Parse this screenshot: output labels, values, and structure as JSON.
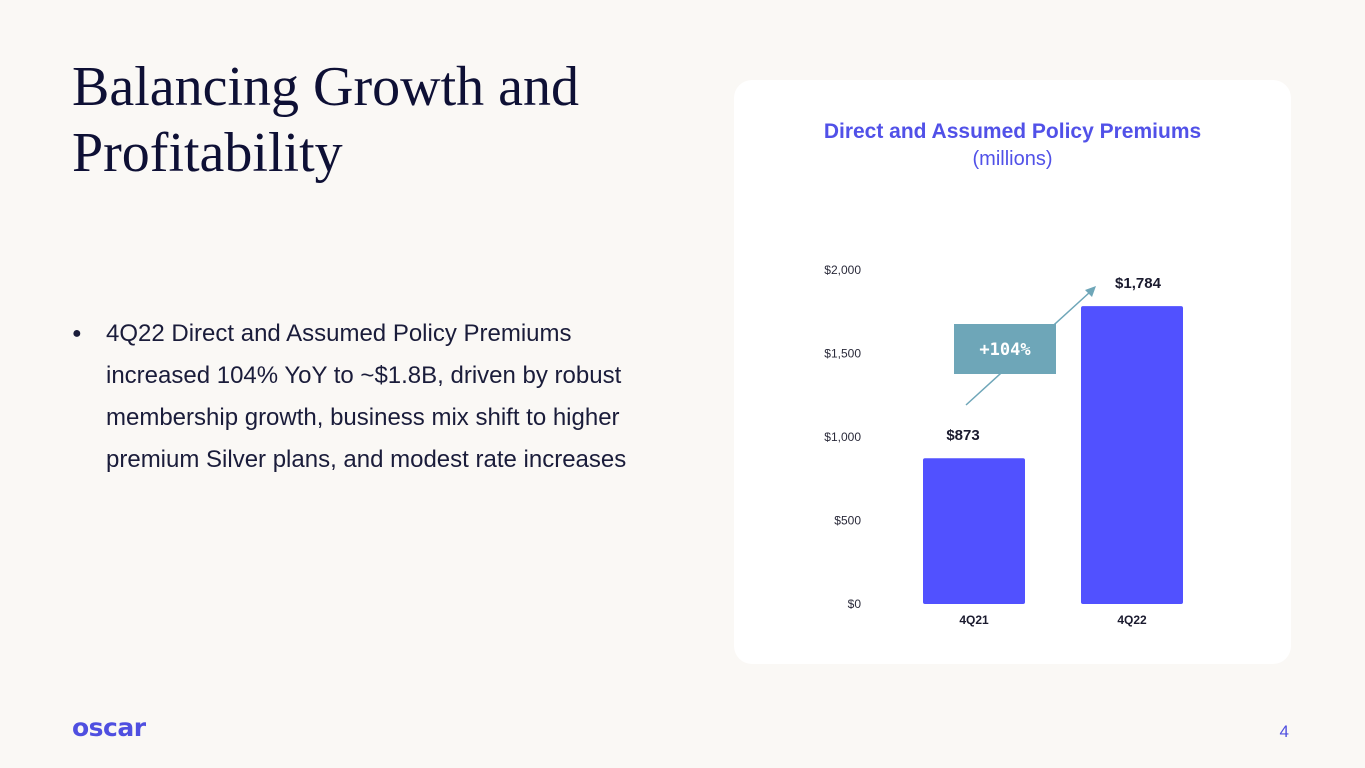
{
  "slide": {
    "title": "Balancing Growth and Profitability",
    "bullets": [
      "4Q22 Direct and Assumed Policy Premiums increased 104% YoY to ~$1.8B, driven by robust membership growth, business mix shift to higher premium Silver plans, and modest rate increases"
    ],
    "bullet_symbol": "●",
    "logo_text": "oscar",
    "page_number": "4"
  },
  "colors": {
    "bar": "#5151ff",
    "title": "#5151e8",
    "annotation_box": "#6ea6b8",
    "annotation_text": "#ffffff"
  },
  "chart_data": {
    "type": "bar",
    "title": "Direct and Assumed Policy Premiums",
    "subtitle": "(millions)",
    "categories": [
      "4Q21",
      "4Q22"
    ],
    "values": [
      873,
      1784
    ],
    "value_labels": [
      "$873",
      "$1,784"
    ],
    "ylim": [
      0,
      2000
    ],
    "yticks": [
      0,
      500,
      1000,
      1500,
      2000
    ],
    "ytick_labels": [
      "$0",
      "$500",
      "$1,000",
      "$1,500",
      "$2,000"
    ],
    "xlabel": "",
    "ylabel": "",
    "grid": false,
    "annotation": "+104%"
  }
}
